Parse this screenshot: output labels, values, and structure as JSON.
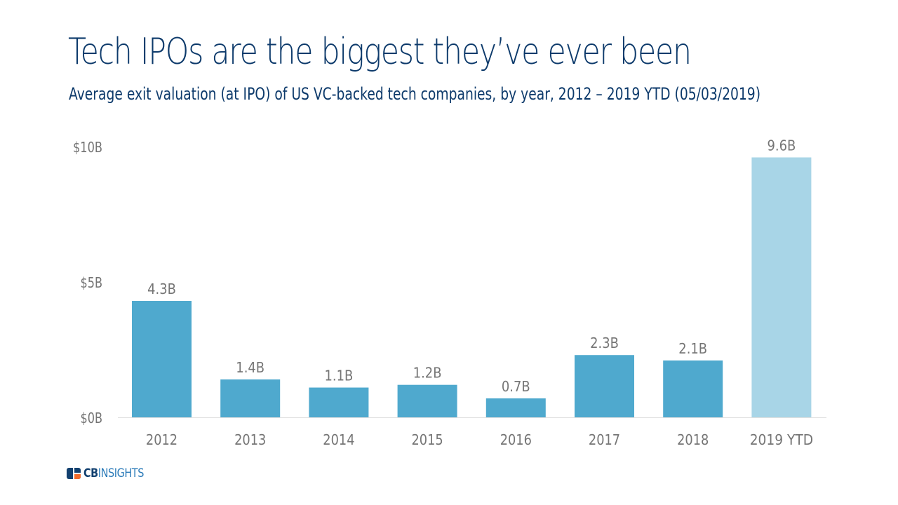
{
  "header": {
    "title": "Tech IPOs are the biggest they’ve ever been",
    "subtitle": "Average exit valuation (at IPO) of US VC-backed tech companies, by year, 2012 – 2019 YTD (05/03/2019)"
  },
  "colors": {
    "title": "#0d3a6b",
    "bar": "#4fa9ce",
    "bar_ytd": "#a8d5e7",
    "axis_text": "#757575",
    "baseline": "#e0e0e0",
    "logo_navy": "#12406f",
    "logo_orange": "#f26b2b",
    "logo_blue": "#2a7ab8"
  },
  "logo": {
    "cb": "CB",
    "insights": "INSIGHTS"
  },
  "chart_data": {
    "type": "bar",
    "title": "Tech IPOs are the biggest they’ve ever been",
    "subtitle": "Average exit valuation (at IPO) of US VC-backed tech companies, by year, 2012 – 2019 YTD (05/03/2019)",
    "xlabel": "",
    "ylabel": "",
    "categories": [
      "2012",
      "2013",
      "2014",
      "2015",
      "2016",
      "2017",
      "2018",
      "2019 YTD"
    ],
    "values": [
      4.3,
      1.4,
      1.1,
      1.2,
      0.7,
      2.3,
      2.1,
      9.6
    ],
    "data_labels": [
      "4.3B",
      "1.4B",
      "1.1B",
      "1.2B",
      "0.7B",
      "2.3B",
      "2.1B",
      "9.6B"
    ],
    "highlight": [
      false,
      false,
      false,
      false,
      false,
      false,
      false,
      true
    ],
    "unit": "$B",
    "ylim": [
      0,
      10
    ],
    "yticks": [
      0,
      5,
      10
    ],
    "ytick_labels": [
      "$0B",
      "$5B",
      "$10B"
    ],
    "grid": false,
    "legend": "none"
  }
}
